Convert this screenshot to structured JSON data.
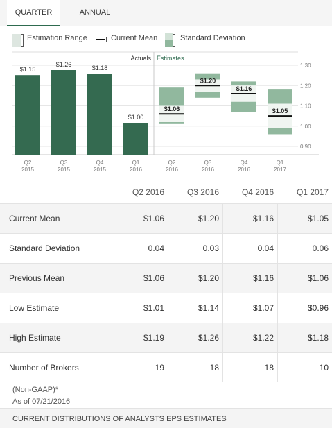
{
  "tabs": [
    {
      "label": "QUARTER",
      "active": true
    },
    {
      "label": "ANNUAL",
      "active": false
    }
  ],
  "legend": {
    "range": "Estimation Range",
    "mean": "Current Mean",
    "sd": "Standard Deviation"
  },
  "colors": {
    "actual_bar": "#346a50",
    "sd_inner": "#f0f5f1",
    "sd_outer": "#91b89e",
    "mean_line": "#111111",
    "tab_underline": "#2e6b4f"
  },
  "chart_data": {
    "type": "bar",
    "section_labels": {
      "actuals": "Actuals",
      "estimates": "Estimates"
    },
    "ylim": [
      0.9,
      1.3
    ],
    "yticks": [
      "1.30",
      "1.20",
      "1.10",
      "1.00",
      "0.90"
    ],
    "actuals": [
      {
        "q": "Q2",
        "year": "2015",
        "value": 1.15,
        "label": "$1.15"
      },
      {
        "q": "Q3",
        "year": "2015",
        "value": 1.26,
        "label": "$1.26"
      },
      {
        "q": "Q4",
        "year": "2015",
        "value": 1.18,
        "label": "$1.18"
      },
      {
        "q": "Q1",
        "year": "2016",
        "value": 1.0,
        "label": "$1.00"
      }
    ],
    "estimates": [
      {
        "q": "Q2",
        "year": "2016",
        "mean": 1.06,
        "sd": 0.04,
        "low": 1.01,
        "high": 1.19,
        "label": "$1.06"
      },
      {
        "q": "Q3",
        "year": "2016",
        "mean": 1.2,
        "sd": 0.03,
        "low": 1.14,
        "high": 1.26,
        "label": "$1.20"
      },
      {
        "q": "Q4",
        "year": "2016",
        "mean": 1.16,
        "sd": 0.04,
        "low": 1.07,
        "high": 1.22,
        "label": "$1.16"
      },
      {
        "q": "Q1",
        "year": "2017",
        "mean": 1.05,
        "sd": 0.06,
        "low": 0.96,
        "high": 1.18,
        "label": "$1.05"
      }
    ]
  },
  "table": {
    "columns": [
      "Q2 2016",
      "Q3 2016",
      "Q4 2016",
      "Q1 2017"
    ],
    "rows": [
      {
        "label": "Current Mean",
        "values": [
          "$1.06",
          "$1.20",
          "$1.16",
          "$1.05"
        ]
      },
      {
        "label": "Standard Deviation",
        "values": [
          "0.04",
          "0.03",
          "0.04",
          "0.06"
        ]
      },
      {
        "label": "Previous Mean",
        "values": [
          "$1.06",
          "$1.20",
          "$1.16",
          "$1.06"
        ]
      },
      {
        "label": "Low Estimate",
        "values": [
          "$1.01",
          "$1.14",
          "$1.07",
          "$0.96"
        ]
      },
      {
        "label": "High Estimate",
        "values": [
          "$1.19",
          "$1.26",
          "$1.22",
          "$1.18"
        ]
      },
      {
        "label": "Number of Brokers",
        "values": [
          "19",
          "18",
          "18",
          "10"
        ]
      }
    ]
  },
  "footnote": {
    "line1": "(Non-GAAP)*",
    "line2": "As of 07/21/2016"
  },
  "bottom_link": "CURRENT DISTRIBUTIONS OF ANALYSTS EPS ESTIMATES"
}
